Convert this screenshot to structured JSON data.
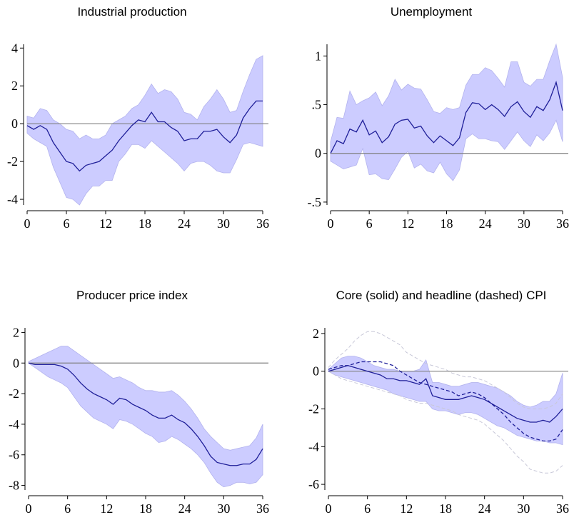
{
  "chart_data": [
    {
      "type": "line",
      "title": "Industrial production",
      "x": [
        0,
        1,
        2,
        3,
        4,
        5,
        6,
        7,
        8,
        9,
        10,
        11,
        12,
        13,
        14,
        15,
        16,
        17,
        18,
        19,
        20,
        21,
        22,
        23,
        24,
        25,
        26,
        27,
        28,
        29,
        30,
        31,
        32,
        33,
        34,
        35,
        36
      ],
      "ylim": [
        -4.3,
        4.2
      ],
      "xticks": [
        0,
        6,
        12,
        18,
        24,
        30,
        36
      ],
      "yticks": [
        {
          "value": 4,
          "label": "4"
        },
        {
          "value": 2,
          "label": "2"
        },
        {
          "value": 0,
          "label": "0"
        },
        {
          "value": -2,
          "label": "-2"
        },
        {
          "value": -4,
          "label": "-4"
        }
      ],
      "series": [
        {
          "style": "solid",
          "values": [
            -0.1,
            -0.3,
            -0.1,
            -0.3,
            -1.0,
            -1.5,
            -2.0,
            -2.1,
            -2.5,
            -2.2,
            -2.1,
            -2.0,
            -1.7,
            -1.4,
            -0.9,
            -0.5,
            -0.1,
            0.2,
            0.1,
            0.6,
            0.1,
            0.1,
            -0.2,
            -0.4,
            -0.9,
            -0.8,
            -0.8,
            -0.4,
            -0.4,
            -0.3,
            -0.7,
            -1.0,
            -0.6,
            0.3,
            0.8,
            1.2,
            1.2
          ]
        }
      ],
      "bands": [
        {
          "lower": [
            -0.5,
            -0.8,
            -1.0,
            -1.2,
            -2.3,
            -3.1,
            -3.9,
            -4.0,
            -4.3,
            -3.7,
            -3.3,
            -3.3,
            -3.0,
            -3.0,
            -2.0,
            -1.6,
            -1.1,
            -1.1,
            -1.3,
            -0.9,
            -1.2,
            -1.5,
            -1.8,
            -2.1,
            -2.5,
            -2.1,
            -2.0,
            -2.0,
            -2.2,
            -2.5,
            -2.6,
            -2.6,
            -1.9,
            -1.1,
            -1.0,
            -1.1,
            -1.2
          ],
          "upper": [
            0.4,
            0.3,
            0.8,
            0.7,
            0.2,
            0.0,
            -0.3,
            -0.4,
            -0.8,
            -0.6,
            -0.8,
            -0.8,
            -0.6,
            0.0,
            0.2,
            0.4,
            0.8,
            1.0,
            1.5,
            2.1,
            1.6,
            1.8,
            1.7,
            1.3,
            0.6,
            0.5,
            0.2,
            0.9,
            1.3,
            1.8,
            1.3,
            0.6,
            0.7,
            1.7,
            2.6,
            3.4,
            3.6
          ]
        }
      ]
    },
    {
      "type": "line",
      "title": "Unemployment",
      "x": [
        0,
        1,
        2,
        3,
        4,
        5,
        6,
        7,
        8,
        9,
        10,
        11,
        12,
        13,
        14,
        15,
        16,
        17,
        18,
        19,
        20,
        21,
        22,
        23,
        24,
        25,
        26,
        27,
        28,
        29,
        30,
        31,
        32,
        33,
        34,
        35,
        36
      ],
      "ylim": [
        -0.53,
        1.12
      ],
      "xticks": [
        0,
        6,
        12,
        18,
        24,
        30,
        36
      ],
      "yticks": [
        {
          "value": 1,
          "label": "1"
        },
        {
          "value": 0.5,
          "label": ".5"
        },
        {
          "value": 0,
          "label": "0"
        },
        {
          "value": -0.5,
          "label": "-.5"
        }
      ],
      "series": [
        {
          "style": "solid",
          "values": [
            0.0,
            0.13,
            0.1,
            0.25,
            0.22,
            0.34,
            0.19,
            0.23,
            0.11,
            0.17,
            0.3,
            0.34,
            0.35,
            0.26,
            0.28,
            0.18,
            0.11,
            0.18,
            0.13,
            0.08,
            0.16,
            0.42,
            0.52,
            0.51,
            0.45,
            0.5,
            0.45,
            0.38,
            0.48,
            0.53,
            0.43,
            0.37,
            0.48,
            0.44,
            0.55,
            0.73,
            0.44
          ]
        }
      ],
      "bands": [
        {
          "lower": [
            -0.08,
            -0.12,
            -0.16,
            -0.14,
            -0.12,
            0.05,
            -0.22,
            -0.21,
            -0.26,
            -0.27,
            -0.16,
            -0.04,
            0.02,
            -0.15,
            -0.11,
            -0.18,
            -0.2,
            -0.09,
            -0.21,
            -0.28,
            -0.17,
            0.15,
            0.2,
            0.15,
            0.15,
            0.13,
            0.12,
            0.04,
            0.13,
            0.22,
            0.13,
            0.07,
            0.19,
            0.13,
            0.21,
            0.34,
            0.12
          ],
          "upper": [
            0.12,
            0.37,
            0.36,
            0.64,
            0.5,
            0.54,
            0.57,
            0.63,
            0.49,
            0.59,
            0.76,
            0.65,
            0.71,
            0.67,
            0.66,
            0.55,
            0.43,
            0.41,
            0.47,
            0.45,
            0.47,
            0.7,
            0.81,
            0.81,
            0.88,
            0.85,
            0.77,
            0.68,
            0.94,
            0.94,
            0.73,
            0.69,
            0.76,
            0.76,
            0.95,
            1.12,
            0.78
          ]
        }
      ]
    },
    {
      "type": "line",
      "title": "Producer price index",
      "x": [
        0,
        1,
        2,
        3,
        4,
        5,
        6,
        7,
        8,
        9,
        10,
        11,
        12,
        13,
        14,
        15,
        16,
        17,
        18,
        19,
        20,
        21,
        22,
        23,
        24,
        25,
        26,
        27,
        28,
        29,
        30,
        31,
        32,
        33,
        34,
        35,
        36
      ],
      "ylim": [
        -8.3,
        2.3
      ],
      "xticks": [
        0,
        6,
        12,
        18,
        24,
        30,
        36
      ],
      "yticks": [
        {
          "value": 2,
          "label": "2"
        },
        {
          "value": 0,
          "label": "0"
        },
        {
          "value": -2,
          "label": "-2"
        },
        {
          "value": -4,
          "label": "-4"
        },
        {
          "value": -6,
          "label": "-6"
        },
        {
          "value": -8,
          "label": "-8"
        }
      ],
      "series": [
        {
          "style": "solid",
          "values": [
            0.0,
            -0.1,
            -0.1,
            -0.1,
            -0.1,
            -0.2,
            -0.4,
            -0.8,
            -1.3,
            -1.7,
            -2.0,
            -2.2,
            -2.4,
            -2.7,
            -2.3,
            -2.4,
            -2.7,
            -2.9,
            -3.1,
            -3.4,
            -3.6,
            -3.6,
            -3.4,
            -3.7,
            -3.9,
            -4.3,
            -4.8,
            -5.4,
            -6.1,
            -6.5,
            -6.6,
            -6.7,
            -6.7,
            -6.6,
            -6.6,
            -6.3,
            -5.6
          ]
        }
      ],
      "bands": [
        {
          "lower": [
            0.0,
            -0.3,
            -0.6,
            -0.9,
            -1.1,
            -1.3,
            -1.6,
            -2.2,
            -2.8,
            -3.2,
            -3.6,
            -3.8,
            -4.0,
            -4.3,
            -3.7,
            -3.8,
            -4.0,
            -4.3,
            -4.6,
            -4.8,
            -5.2,
            -5.1,
            -4.8,
            -5.0,
            -5.3,
            -5.6,
            -6.0,
            -6.5,
            -7.2,
            -7.8,
            -8.1,
            -8.0,
            -7.8,
            -7.8,
            -7.9,
            -7.8,
            -7.3
          ]
        },
        {
          "upper": [
            0.1,
            0.3,
            0.5,
            0.7,
            0.9,
            1.1,
            1.1,
            0.8,
            0.5,
            0.2,
            -0.1,
            -0.4,
            -0.7,
            -1.0,
            -0.9,
            -1.1,
            -1.3,
            -1.6,
            -1.8,
            -1.8,
            -1.9,
            -1.9,
            -1.8,
            -2.1,
            -2.5,
            -3.0,
            -3.6,
            -4.3,
            -4.8,
            -5.2,
            -5.6,
            -5.7,
            -5.6,
            -5.5,
            -5.4,
            -4.9,
            -4.0
          ]
        }
      ]
    },
    {
      "type": "line",
      "title": "Core (solid) and headline (dashed) CPI",
      "x": [
        0,
        1,
        2,
        3,
        4,
        5,
        6,
        7,
        8,
        9,
        10,
        11,
        12,
        13,
        14,
        15,
        16,
        17,
        18,
        19,
        20,
        21,
        22,
        23,
        24,
        25,
        26,
        27,
        28,
        29,
        30,
        31,
        32,
        33,
        34,
        35,
        36
      ],
      "ylim": [
        -6.3,
        2.3
      ],
      "xticks": [
        0,
        6,
        12,
        18,
        24,
        30,
        36
      ],
      "yticks": [
        {
          "value": 2,
          "label": "2"
        },
        {
          "value": 0,
          "label": "0"
        },
        {
          "value": -2,
          "label": "-2"
        },
        {
          "value": -4,
          "label": "-4"
        },
        {
          "value": -6,
          "label": "-6"
        }
      ],
      "series": [
        {
          "style": "solid",
          "values": [
            0.0,
            0.1,
            0.2,
            0.3,
            0.2,
            0.1,
            0.0,
            -0.1,
            -0.2,
            -0.4,
            -0.4,
            -0.5,
            -0.5,
            -0.6,
            -0.7,
            -0.4,
            -1.3,
            -1.4,
            -1.5,
            -1.5,
            -1.5,
            -1.4,
            -1.3,
            -1.4,
            -1.5,
            -1.7,
            -1.9,
            -2.1,
            -2.3,
            -2.5,
            -2.6,
            -2.7,
            -2.7,
            -2.6,
            -2.7,
            -2.4,
            -2.0
          ]
        },
        {
          "style": "dashed",
          "values": [
            0.1,
            0.2,
            0.3,
            0.3,
            0.4,
            0.5,
            0.5,
            0.5,
            0.5,
            0.4,
            0.3,
            0.0,
            -0.2,
            -0.4,
            -0.6,
            -0.7,
            -0.8,
            -0.9,
            -1.0,
            -1.1,
            -1.3,
            -1.2,
            -1.1,
            -1.2,
            -1.4,
            -1.7,
            -2.0,
            -2.3,
            -2.7,
            -3.0,
            -3.3,
            -3.5,
            -3.6,
            -3.7,
            -3.7,
            -3.6,
            -3.1
          ]
        }
      ],
      "bands": [
        {
          "lower": [
            0.0,
            -0.2,
            -0.3,
            -0.4,
            -0.5,
            -0.6,
            -0.7,
            -0.8,
            -0.9,
            -1.0,
            -1.2,
            -1.3,
            -1.4,
            -1.5,
            -1.6,
            -1.6,
            -2.0,
            -2.1,
            -2.1,
            -2.2,
            -2.3,
            -2.2,
            -2.2,
            -2.3,
            -2.5,
            -2.7,
            -2.9,
            -3.0,
            -3.2,
            -3.4,
            -3.5,
            -3.6,
            -3.7,
            -3.7,
            -3.8,
            -3.8,
            -3.9
          ],
          "upper": [
            0.1,
            0.4,
            0.7,
            0.8,
            0.8,
            0.7,
            0.5,
            0.3,
            0.2,
            0.1,
            0.1,
            0.0,
            0.0,
            0.0,
            0.1,
            0.6,
            -0.6,
            -0.6,
            -0.7,
            -0.8,
            -0.8,
            -0.7,
            -0.6,
            -0.6,
            -0.7,
            -0.8,
            -0.9,
            -1.1,
            -1.3,
            -1.6,
            -1.8,
            -1.9,
            -1.8,
            -1.6,
            -1.6,
            -1.2,
            -0.1
          ]
        },
        {
          "dashed": true,
          "lower": [
            0.0,
            -0.2,
            -0.4,
            -0.5,
            -0.6,
            -0.7,
            -0.8,
            -0.9,
            -1.0,
            -1.1,
            -1.2,
            -1.3,
            -1.5,
            -1.6,
            -1.7,
            -1.7,
            -1.8,
            -1.9,
            -2.0,
            -2.1,
            -2.3,
            -2.4,
            -2.5,
            -2.6,
            -2.8,
            -3.1,
            -3.4,
            -3.7,
            -4.1,
            -4.5,
            -4.8,
            -5.2,
            -5.3,
            -5.4,
            -5.4,
            -5.3,
            -5.0
          ],
          "upper": [
            0.2,
            0.6,
            0.9,
            1.2,
            1.6,
            1.9,
            2.1,
            2.1,
            2.0,
            1.8,
            1.6,
            1.4,
            1.0,
            0.8,
            0.6,
            0.4,
            0.3,
            0.2,
            0.1,
            -0.1,
            -0.2,
            -0.3,
            -0.3,
            -0.4,
            -0.5,
            -0.7,
            -0.9,
            -1.1,
            -1.4,
            -1.7,
            -1.9,
            -2.0,
            -2.0,
            -2.0,
            -1.9,
            -1.7,
            -1.2
          ]
        }
      ]
    }
  ]
}
